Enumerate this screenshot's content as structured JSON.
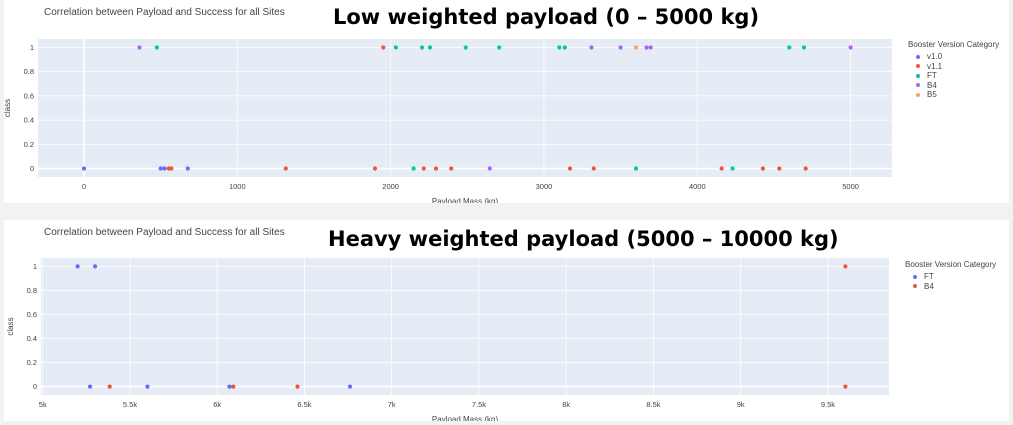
{
  "charts": [
    {
      "heading": "Low weighted payload (0 – 5000 kg)",
      "title": "Correlation between Payload and Success for all Sites",
      "xlabel": "Payload Mass (kg)",
      "ylabel": "class",
      "legend_title": "Booster Version Category",
      "legend_items": [
        "v1.0",
        "v1.1",
        "FT",
        "B4",
        "B5"
      ]
    },
    {
      "heading": "Heavy weighted payload (5000 – 10000 kg)",
      "title": "Correlation between Payload and Success for all Sites",
      "xlabel": "Payload Mass (kg)",
      "ylabel": "class",
      "legend_title": "Booster Version Category",
      "legend_items": [
        "FT",
        "B4"
      ]
    }
  ],
  "chart_data": [
    {
      "type": "scatter",
      "title": "Correlation between Payload and Success for all Sites",
      "xlabel": "Payload Mass (kg)",
      "ylabel": "class",
      "xlim": [
        -300,
        5270
      ],
      "ylim": [
        -0.07,
        1.07
      ],
      "x_ticks": [
        0,
        1000,
        2000,
        3000,
        4000,
        5000
      ],
      "x_tick_labels": [
        "0",
        "1000",
        "2000",
        "3000",
        "4000",
        "5000"
      ],
      "y_ticks": [
        0,
        0.2,
        0.4,
        0.6,
        0.8,
        1
      ],
      "y_tick_labels": [
        "0",
        "0.2",
        "0.4",
        "0.6",
        "0.8",
        "1"
      ],
      "grid": true,
      "legend_position": "right",
      "series": [
        {
          "name": "v1.0",
          "color": "#636efa",
          "points": [
            [
              0,
              0
            ],
            [
              500,
              0
            ],
            [
              525,
              0
            ],
            [
              677,
              0
            ]
          ]
        },
        {
          "name": "v1.1",
          "color": "#ef553b",
          "points": [
            [
              1952,
              1
            ],
            [
              570,
              0
            ],
            [
              553,
              0
            ],
            [
              1316,
              0
            ],
            [
              1898,
              0
            ],
            [
              2216,
              0
            ],
            [
              2296,
              0
            ],
            [
              2395,
              0
            ],
            [
              3170,
              0
            ],
            [
              3325,
              0
            ],
            [
              4159,
              0
            ],
            [
              4428,
              0
            ],
            [
              4535,
              0
            ],
            [
              4707,
              0
            ]
          ]
        },
        {
          "name": "FT",
          "color": "#00cc96",
          "points": [
            [
              475,
              1
            ],
            [
              2034,
              1
            ],
            [
              2205,
              1
            ],
            [
              2257,
              1
            ],
            [
              2490,
              1
            ],
            [
              2708,
              1
            ],
            [
              3100,
              1
            ],
            [
              3136,
              1
            ],
            [
              4600,
              1
            ],
            [
              4696,
              1
            ],
            [
              2150,
              0
            ],
            [
              3600,
              0
            ],
            [
              4230,
              0
            ]
          ]
        },
        {
          "name": "B4",
          "color": "#ab63fa",
          "points": [
            [
              362,
              1
            ],
            [
              3310,
              1
            ],
            [
              3500,
              1
            ],
            [
              3669,
              1
            ],
            [
              3696,
              1
            ],
            [
              5000,
              1
            ],
            [
              2647,
              0
            ]
          ]
        },
        {
          "name": "B5",
          "color": "#ffa15a",
          "points": [
            [
              3600,
              1
            ]
          ]
        }
      ]
    },
    {
      "type": "scatter",
      "title": "Correlation between Payload and Success for all Sites",
      "xlabel": "Payload Mass (kg)",
      "ylabel": "class",
      "xlim": [
        4990,
        9850
      ],
      "ylim": [
        -0.07,
        1.07
      ],
      "x_ticks": [
        5000,
        5500,
        6000,
        6500,
        7000,
        7500,
        8000,
        8500,
        9000,
        9500
      ],
      "x_tick_labels": [
        "5k",
        "5.5k",
        "6k",
        "6.5k",
        "7k",
        "7.5k",
        "8k",
        "8.5k",
        "9k",
        "9.5k"
      ],
      "y_ticks": [
        0,
        0.2,
        0.4,
        0.6,
        0.8,
        1
      ],
      "y_tick_labels": [
        "0",
        "0.2",
        "0.4",
        "0.6",
        "0.8",
        "1"
      ],
      "grid": true,
      "legend_position": "right",
      "series": [
        {
          "name": "FT",
          "color": "#636efa",
          "points": [
            [
              5200,
              1
            ],
            [
              5300,
              1
            ],
            [
              5271,
              0
            ],
            [
              5600,
              0
            ],
            [
              6070,
              0
            ],
            [
              6761,
              0
            ]
          ]
        },
        {
          "name": "B4",
          "color": "#ef553b",
          "points": [
            [
              9600,
              1
            ],
            [
              5384,
              0
            ],
            [
              6092,
              0
            ],
            [
              6460,
              0
            ],
            [
              9600,
              0
            ]
          ]
        }
      ]
    }
  ]
}
